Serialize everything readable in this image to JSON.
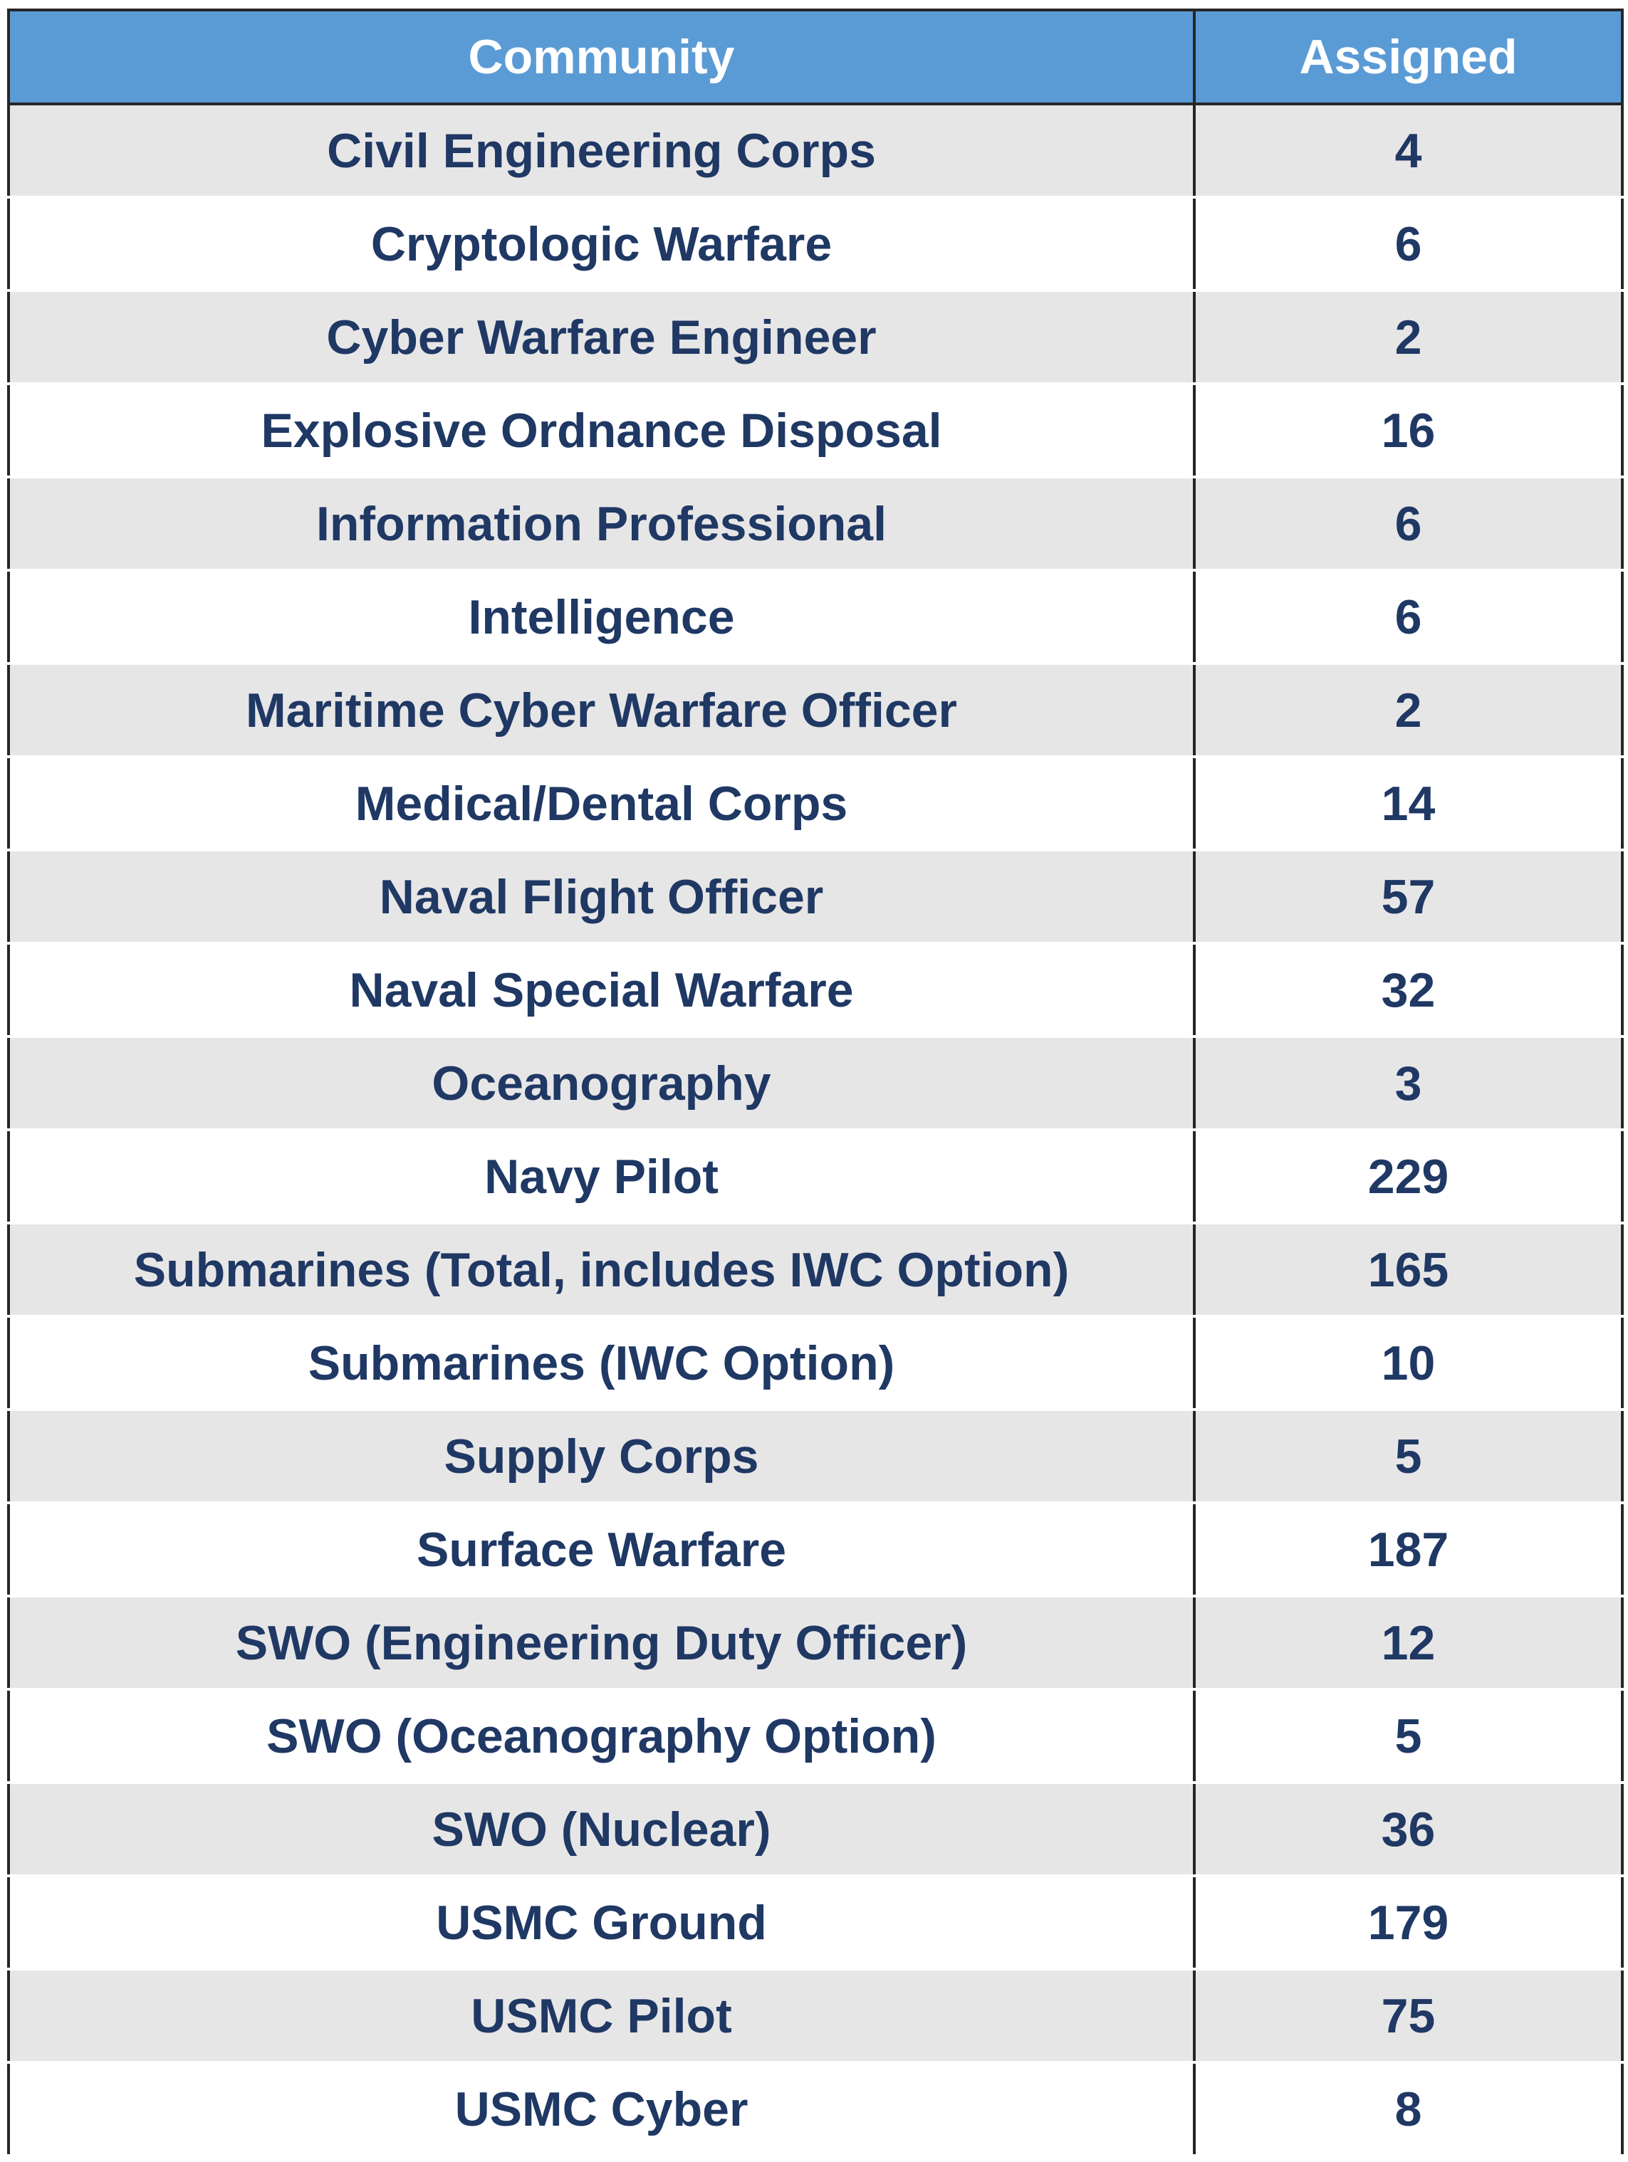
{
  "table": {
    "headers": [
      "Community",
      "Assigned"
    ],
    "rows": [
      [
        "Civil Engineering Corps",
        4
      ],
      [
        "Cryptologic Warfare",
        6
      ],
      [
        "Cyber Warfare Engineer",
        2
      ],
      [
        "Explosive Ordnance Disposal",
        16
      ],
      [
        "Information Professional",
        6
      ],
      [
        "Intelligence",
        6
      ],
      [
        "Maritime Cyber Warfare Officer",
        2
      ],
      [
        "Medical/Dental Corps",
        14
      ],
      [
        "Naval Flight Officer",
        57
      ],
      [
        "Naval Special Warfare",
        32
      ],
      [
        "Oceanography",
        3
      ],
      [
        "Navy Pilot",
        229
      ],
      [
        "Submarines (Total, includes IWC Option)",
        165
      ],
      [
        "Submarines (IWC Option)",
        10
      ],
      [
        "Supply Corps",
        5
      ],
      [
        "Surface Warfare",
        187
      ],
      [
        "SWO (Engineering Duty Officer)",
        12
      ],
      [
        "SWO (Oceanography Option)",
        5
      ],
      [
        "SWO (Nuclear)",
        36
      ],
      [
        "USMC Ground",
        179
      ],
      [
        "USMC Pilot",
        75
      ],
      [
        "USMC Cyber",
        8
      ]
    ]
  }
}
